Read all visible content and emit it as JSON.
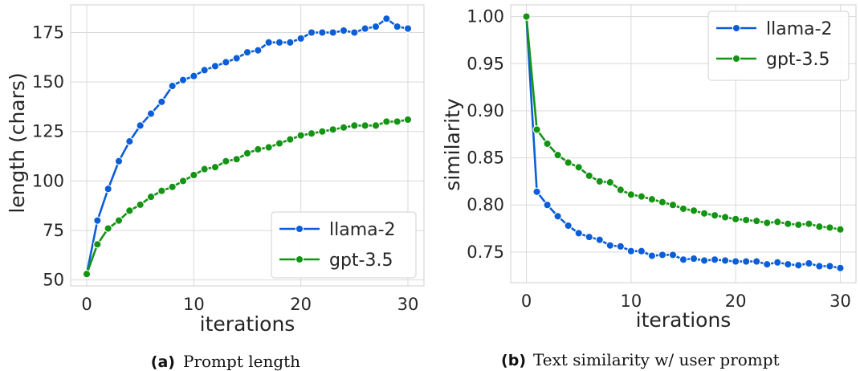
{
  "chart_data": [
    {
      "type": "line",
      "xlabel": "iterations",
      "ylabel": "length (chars)",
      "xlim": [
        -1.5,
        31.5
      ],
      "ylim": [
        47,
        189
      ],
      "xticks": [
        0,
        10,
        20,
        30
      ],
      "yticks": [
        50,
        75,
        100,
        125,
        150,
        175
      ],
      "ytick_labels": [
        "50",
        "75",
        "100",
        "125",
        "150",
        "175"
      ],
      "grid": true,
      "legend": "bottom-right",
      "caption_tag": "(a)",
      "caption": "Prompt length",
      "x": [
        0,
        1,
        2,
        3,
        4,
        5,
        6,
        7,
        8,
        9,
        10,
        11,
        12,
        13,
        14,
        15,
        16,
        17,
        18,
        19,
        20,
        21,
        22,
        23,
        24,
        25,
        26,
        27,
        28,
        29,
        30
      ],
      "series": [
        {
          "name": "llama-2",
          "color": "#0b5ed7",
          "values": [
            53,
            80,
            96,
            110,
            120,
            128,
            134,
            140,
            148,
            151,
            153,
            156,
            158,
            160,
            162,
            165,
            166,
            170,
            170,
            170,
            172,
            175,
            175,
            175,
            176,
            175,
            177,
            178,
            182,
            178,
            177
          ]
        },
        {
          "name": "gpt-3.5",
          "color": "#149414",
          "values": [
            53,
            68,
            76,
            80,
            85,
            88,
            92,
            95,
            97,
            100,
            103,
            106,
            107,
            110,
            111,
            114,
            116,
            117,
            119,
            121,
            123,
            124,
            125,
            126,
            127,
            128,
            128,
            128,
            130,
            130,
            131
          ]
        }
      ]
    },
    {
      "type": "line",
      "xlabel": "iterations",
      "ylabel": "similarity",
      "xlim": [
        -1.5,
        31.5
      ],
      "ylim": [
        0.7175,
        1.0125
      ],
      "xticks": [
        0,
        10,
        20,
        30
      ],
      "yticks": [
        0.75,
        0.8,
        0.85,
        0.9,
        0.95,
        1.0
      ],
      "ytick_labels": [
        "0.75",
        "0.80",
        "0.85",
        "0.90",
        "0.95",
        "1.00"
      ],
      "grid": true,
      "legend": "top-right",
      "caption_tag": "(b)",
      "caption": "Text similarity w/ user prompt",
      "x": [
        0,
        1,
        2,
        3,
        4,
        5,
        6,
        7,
        8,
        9,
        10,
        11,
        12,
        13,
        14,
        15,
        16,
        17,
        18,
        19,
        20,
        21,
        22,
        23,
        24,
        25,
        26,
        27,
        28,
        29,
        30
      ],
      "series": [
        {
          "name": "llama-2",
          "color": "#0b5ed7",
          "values": [
            1.0,
            0.814,
            0.8,
            0.788,
            0.778,
            0.77,
            0.766,
            0.763,
            0.757,
            0.756,
            0.751,
            0.751,
            0.746,
            0.747,
            0.747,
            0.742,
            0.743,
            0.741,
            0.742,
            0.741,
            0.74,
            0.74,
            0.74,
            0.737,
            0.739,
            0.737,
            0.736,
            0.738,
            0.735,
            0.735,
            0.733
          ]
        },
        {
          "name": "gpt-3.5",
          "color": "#149414",
          "values": [
            1.0,
            0.88,
            0.865,
            0.853,
            0.845,
            0.84,
            0.831,
            0.825,
            0.824,
            0.816,
            0.811,
            0.809,
            0.806,
            0.803,
            0.8,
            0.796,
            0.794,
            0.791,
            0.789,
            0.787,
            0.785,
            0.784,
            0.783,
            0.781,
            0.782,
            0.78,
            0.779,
            0.78,
            0.777,
            0.776,
            0.774
          ]
        }
      ]
    }
  ]
}
